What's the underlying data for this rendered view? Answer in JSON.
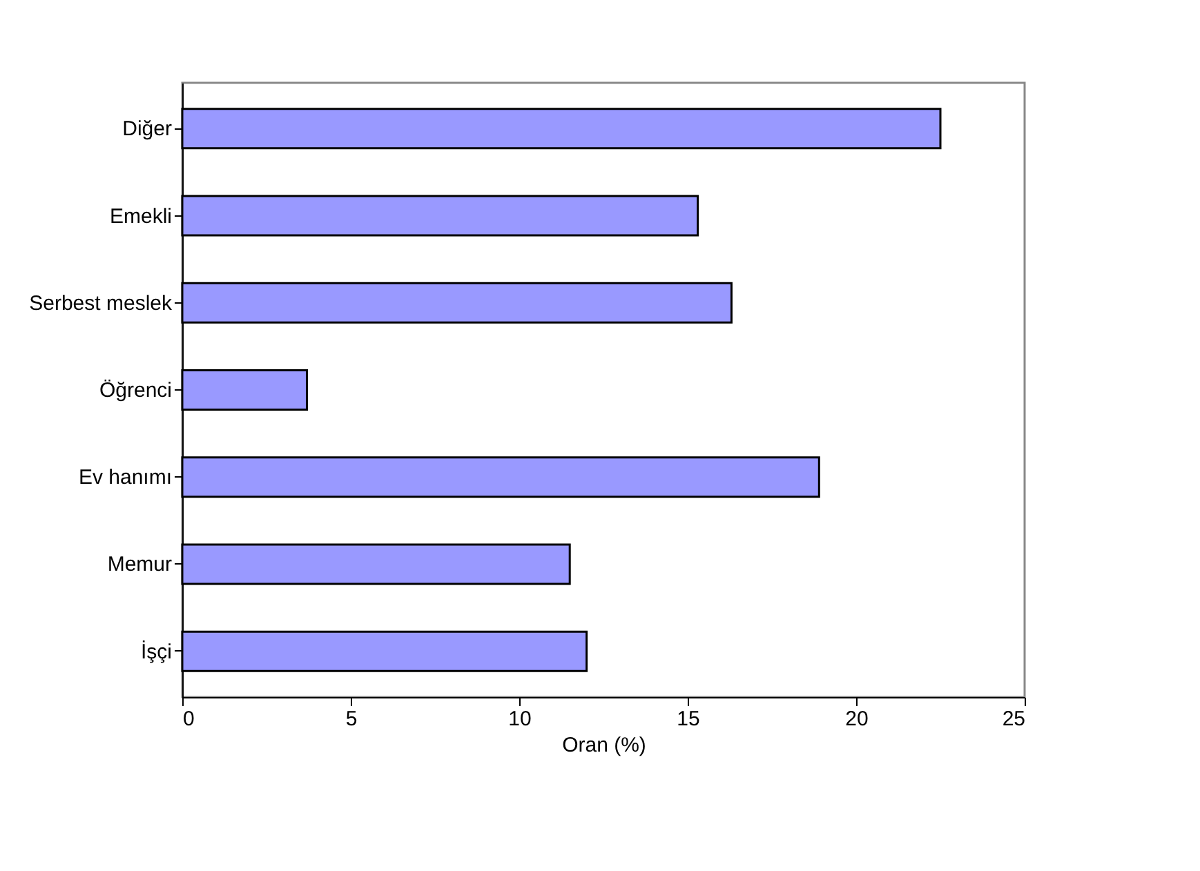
{
  "chart_data": {
    "type": "bar",
    "orientation": "horizontal",
    "xlabel": "Oran (%)",
    "categories": [
      "Diğer",
      "Emekli",
      "Serbest meslek",
      "Öğrenci",
      "Ev hanımı",
      "Memur",
      "İşçi"
    ],
    "values": [
      22.5,
      15.3,
      16.3,
      3.7,
      18.9,
      11.5,
      12.0
    ],
    "color": "#9999ff",
    "xlim": [
      0,
      25
    ],
    "xticks": [
      0,
      5,
      10,
      15,
      20,
      25
    ],
    "grid": false
  }
}
